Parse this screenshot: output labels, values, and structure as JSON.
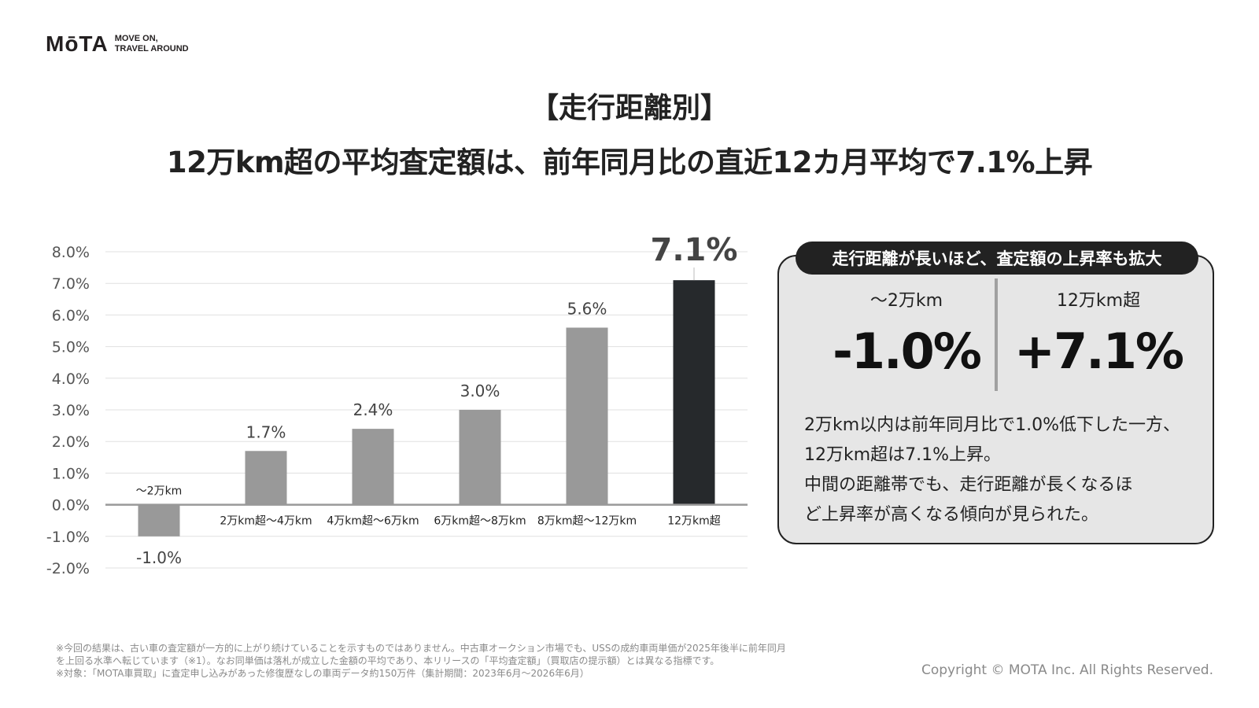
{
  "logo": {
    "mark": "MōTA",
    "tagline": "MOVE ON,\nTRAVEL AROUND"
  },
  "title": {
    "line1": "【走行距離別】",
    "line2": "12万km超の平均査定額は、前年同月比の直近12カ月平均で7.1%上昇"
  },
  "chart_data": {
    "type": "bar",
    "categories": [
      "～2万km",
      "2万km超～4万km",
      "4万km超～6万km",
      "6万km超～8万km",
      "8万km超～12万km",
      "12万km超"
    ],
    "values": [
      -1.0,
      1.7,
      2.4,
      3.0,
      5.6,
      7.1
    ],
    "value_labels": [
      "-1.0%",
      "1.7%",
      "2.4%",
      "3.0%",
      "5.6%",
      "7.1%"
    ],
    "y_ticks": [
      "8.0%",
      "7.0%",
      "6.0%",
      "5.0%",
      "4.0%",
      "3.0%",
      "2.0%",
      "1.0%",
      "0.0%",
      "-1.0%",
      "-2.0%"
    ],
    "ylim": [
      -2.0,
      8.0
    ],
    "grid": true,
    "colors": {
      "bar": "#999999",
      "highlight": "#26292c",
      "axis": "#999999",
      "grid": "#e0e0e0"
    },
    "highlight_index": 5
  },
  "panel": {
    "header": "走行距離が長いほど、査定額の上昇率も拡大",
    "left_label": "～2万km",
    "left_value": "-1.0%",
    "right_label": "12万km超",
    "right_value": "+7.1%",
    "text_lines": [
      "2万km以内は前年同月比で1.0%低下した一方、",
      "12万km超は7.1%上昇。",
      "中間の距離帯でも、走行距離が長くなるほ",
      "ど上昇率が高くなる傾向が見られた。"
    ]
  },
  "footnotes": [
    "※今回の結果は、古い車の査定額が一方的に上がり続けていることを示すものではありません。中古車オークション市場でも、USSの成約車両単価が2025年後半に前年同月",
    "を上回る水準へ転じています（※1）。なお同単価は落札が成立した金額の平均であり、本リリースの「平均査定額」（買取店の提示額）とは異なる指標です。",
    "※対象：「MOTA車買取」に査定申し込みがあった修復歴なしの車両データ約150万件（集計期間：2023年6月～2026年6月）"
  ],
  "copyright": "Copyright © MOTA Inc. All Rights Reserved."
}
